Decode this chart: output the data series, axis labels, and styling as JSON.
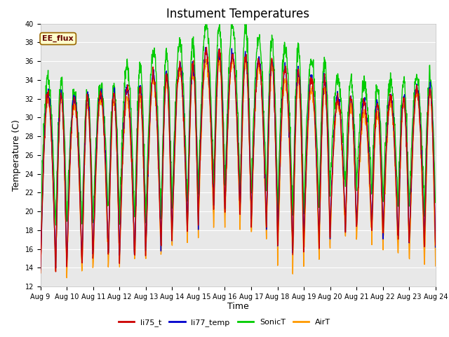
{
  "title": "Instument Temperatures",
  "xlabel": "Time",
  "ylabel": "Temperature (C)",
  "ylim": [
    12,
    40
  ],
  "xlim_days": 15,
  "x_tick_labels": [
    "Aug 9",
    "Aug 10",
    "Aug 11",
    "Aug 12",
    "Aug 13",
    "Aug 14",
    "Aug 15",
    "Aug 16",
    "Aug 17",
    "Aug 18",
    "Aug 19",
    "Aug 20",
    "Aug 21",
    "Aug 22",
    "Aug 23",
    "Aug 24"
  ],
  "series_colors": {
    "li75_t": "#cc0000",
    "li77_temp": "#0000cc",
    "SonicT": "#00cc00",
    "AirT": "#ff9900"
  },
  "legend_labels": [
    "li75_t",
    "li77_temp",
    "SonicT",
    "AirT"
  ],
  "annotation_text": "EE_flux",
  "annotation_bg": "#ffffcc",
  "annotation_border": "#996600",
  "plot_bg": "#e8e8e8",
  "fig_bg": "#ffffff",
  "grid_color": "#ffffff",
  "title_fontsize": 12,
  "axis_label_fontsize": 9,
  "tick_fontsize": 7,
  "line_width": 1.0,
  "n_points": 1440,
  "daily_peaks": [
    32.5,
    32.0,
    32.5,
    33.0,
    34.5,
    35.5,
    37.0,
    36.5,
    36.0,
    35.0,
    34.0,
    32.0,
    31.5,
    32.0,
    33.0
  ],
  "daily_mins": [
    13.5,
    14.0,
    15.0,
    14.5,
    15.5,
    17.5,
    20.0,
    19.5,
    18.0,
    15.5,
    16.5,
    18.0,
    18.0,
    16.5,
    16.0
  ],
  "sonic_extra_peak": [
    1.5,
    0.5,
    1.0,
    2.5,
    2.5,
    2.5,
    3.0,
    3.5,
    2.5,
    2.5,
    2.0,
    2.0,
    2.0,
    2.0,
    1.5
  ],
  "sonic_extra_min": [
    5.0,
    4.5,
    4.5,
    4.0,
    3.5,
    3.0,
    2.5,
    2.0,
    3.5,
    4.0,
    4.5,
    4.5,
    4.0,
    3.5,
    4.0
  ],
  "air_min_offset": [
    -0.5,
    -1.0,
    -1.0,
    -0.5,
    -0.5,
    -1.0,
    -1.5,
    -1.5,
    -1.0,
    -2.0,
    -1.5,
    -1.0,
    -1.5,
    -1.5,
    -2.0
  ],
  "air_peak_offset": [
    -0.5,
    -0.5,
    -0.5,
    -1.0,
    -0.5,
    -0.5,
    -1.0,
    -0.5,
    -0.5,
    -1.0,
    -1.0,
    -0.5,
    -1.0,
    -0.5,
    -0.5
  ]
}
